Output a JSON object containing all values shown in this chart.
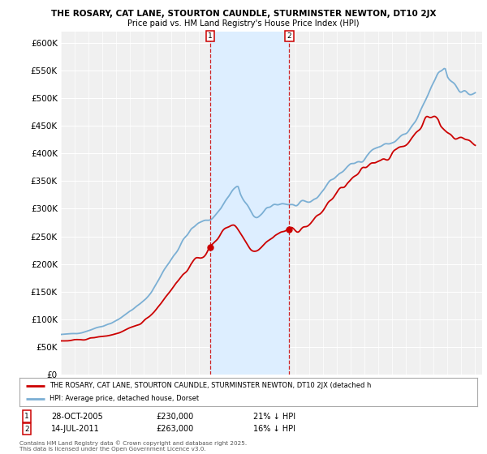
{
  "title": "THE ROSARY, CAT LANE, STOURTON CAUNDLE, STURMINSTER NEWTON, DT10 2JX",
  "subtitle": "Price paid vs. HM Land Registry's House Price Index (HPI)",
  "ylim": [
    0,
    620000
  ],
  "yticks": [
    0,
    50000,
    100000,
    150000,
    200000,
    250000,
    300000,
    350000,
    400000,
    450000,
    500000,
    550000,
    600000
  ],
  "background_color": "#ffffff",
  "plot_bg_color": "#f0f0f0",
  "grid_color": "#ffffff",
  "legend_entries": [
    "THE ROSARY, CAT LANE, STOURTON CAUNDLE, STURMINSTER NEWTON, DT10 2JX (detached h",
    "HPI: Average price, detached house, Dorset"
  ],
  "legend_colors": [
    "#cc0000",
    "#6699cc"
  ],
  "annotation1": {
    "label": "1",
    "date": "28-OCT-2005",
    "price": "£230,000",
    "pct": "21% ↓ HPI"
  },
  "annotation2": {
    "label": "2",
    "date": "14-JUL-2011",
    "price": "£263,000",
    "pct": "16% ↓ HPI"
  },
  "footnote": "Contains HM Land Registry data © Crown copyright and database right 2025.\nThis data is licensed under the Open Government Licence v3.0.",
  "marker1_x": 2005.83,
  "marker2_x": 2011.54,
  "marker1_y": 230000,
  "marker2_y": 263000,
  "shade_color": "#ddeeff",
  "red_color": "#cc0000",
  "blue_color": "#7bafd4",
  "xlim_left": 1995.0,
  "xlim_right": 2025.5
}
